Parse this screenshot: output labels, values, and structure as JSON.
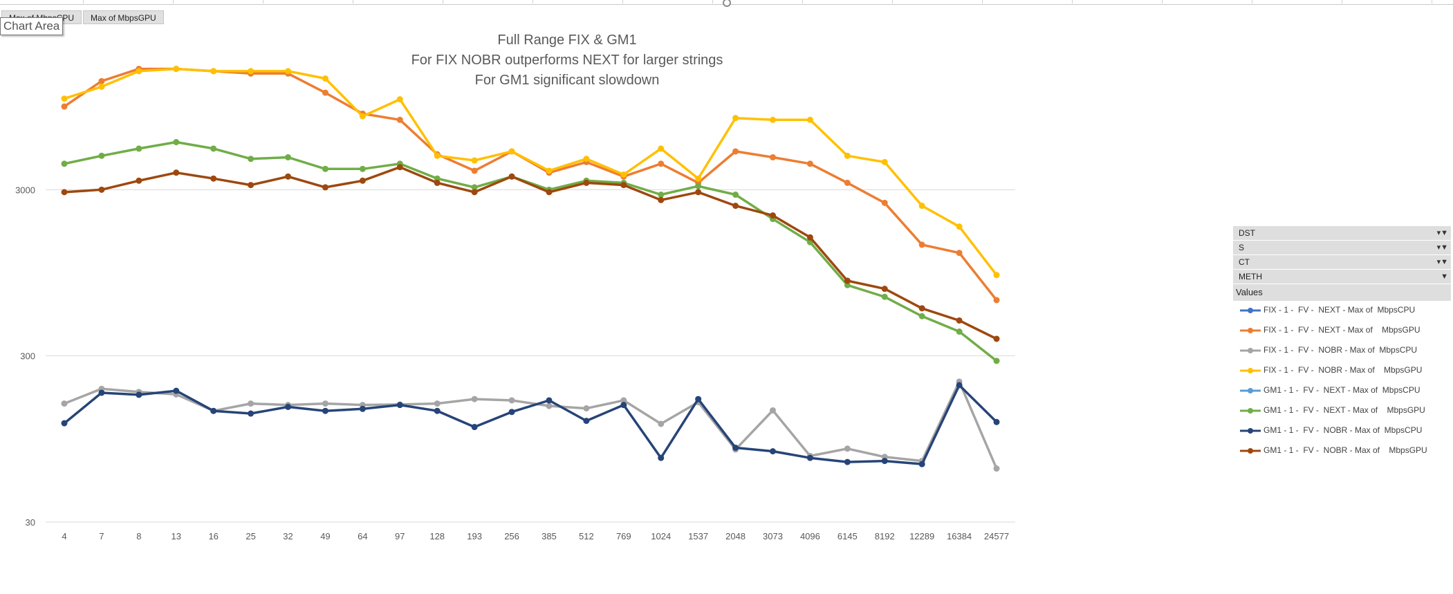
{
  "field_buttons": [
    "Max of  MbpsCPU",
    "Max of    MbpsGPU"
  ],
  "chart_area_label": "Chart Area",
  "filters": [
    {
      "label": "DST",
      "filtered": true
    },
    {
      "label": "S",
      "filtered": true
    },
    {
      "label": "CT",
      "filtered": true
    },
    {
      "label": "METH",
      "filtered": false
    }
  ],
  "values_header": "Values",
  "colors": {
    "gridline": "#d9d9d9",
    "axis_text": "#595959",
    "filter_bg": "#dedede"
  },
  "chart_data": {
    "type": "line",
    "title_lines": [
      "Full Range FIX & GM1",
      "For FIX NOBR outperforms NEXT for larger strings",
      "For GM1 significant slowdown"
    ],
    "y_scale": "log",
    "ylim": [
      30,
      30000
    ],
    "y_ticks": [
      "30",
      "300",
      "3000"
    ],
    "grid": true,
    "legend_position": "right",
    "categories": [
      "4",
      "7",
      "8",
      "13",
      "16",
      "25",
      "32",
      "49",
      "64",
      "97",
      "128",
      "193",
      "256",
      "385",
      "512",
      "769",
      "1024",
      "1537",
      "2048",
      "3073",
      "4096",
      "6145",
      "8192",
      "12289",
      "16384",
      "24577"
    ],
    "series": [
      {
        "name": "FIX - 1 -  FV -  NEXT - Max of  MbpsCPU",
        "color": "#4472c4",
        "values": null
      },
      {
        "name": "FIX - 1 -  FV -  NEXT - Max of    MbpsGPU",
        "color": "#ed7d31",
        "values": [
          9500,
          13500,
          16000,
          16000,
          15500,
          15000,
          15000,
          11500,
          8600,
          7900,
          4900,
          3900,
          5100,
          3800,
          4400,
          3600,
          4300,
          3300,
          5100,
          4700,
          4300,
          3300,
          2500,
          1400,
          1250,
          650
        ]
      },
      {
        "name": "FIX - 1 -  FV -  NOBR - Max of  MbpsCPU",
        "color": "#a5a5a5",
        "values": [
          155,
          190,
          182,
          176,
          140,
          155,
          152,
          155,
          152,
          153,
          155,
          165,
          162,
          150,
          145,
          162,
          117,
          158,
          82,
          141,
          75,
          83,
          74,
          70,
          210,
          63
        ]
      },
      {
        "name": "FIX - 1 -  FV -  NOBR - Max of    MbpsGPU",
        "color": "#ffc000",
        "values": [
          10600,
          12500,
          15500,
          16000,
          15500,
          15500,
          15500,
          14000,
          8300,
          10500,
          4800,
          4500,
          5100,
          3900,
          4600,
          3700,
          5300,
          3500,
          8100,
          7900,
          7900,
          4800,
          4400,
          2400,
          1800,
          920
        ]
      },
      {
        "name": "GM1 - 1 -  FV -  NEXT - Max of  MbpsCPU",
        "color": "#5b9bd5",
        "values": null
      },
      {
        "name": "GM1 - 1 -  FV -  NEXT - Max of    MbpsGPU",
        "color": "#70ad47",
        "values": [
          4300,
          4800,
          5300,
          5800,
          5300,
          4600,
          4700,
          4000,
          4000,
          4300,
          3500,
          3100,
          3600,
          3000,
          3400,
          3300,
          2800,
          3150,
          2800,
          2000,
          1450,
          800,
          680,
          520,
          420,
          280
        ]
      },
      {
        "name": "GM1 - 1 -  FV -  NOBR - Max of  MbpsCPU",
        "color": "#264478",
        "values": [
          118,
          180,
          175,
          185,
          140,
          135,
          148,
          140,
          144,
          152,
          140,
          112,
          138,
          162,
          122,
          152,
          73,
          165,
          84,
          80,
          73,
          69,
          70,
          67,
          200,
          120
        ]
      },
      {
        "name": "GM1 - 1 -  FV -  NOBR - Max of    MbpsGPU",
        "color": "#9e480e",
        "values": [
          2900,
          3000,
          3400,
          3800,
          3500,
          3200,
          3600,
          3100,
          3400,
          4100,
          3300,
          2900,
          3600,
          2900,
          3300,
          3200,
          2600,
          2900,
          2400,
          2100,
          1550,
          850,
          760,
          580,
          490,
          380
        ]
      }
    ]
  }
}
